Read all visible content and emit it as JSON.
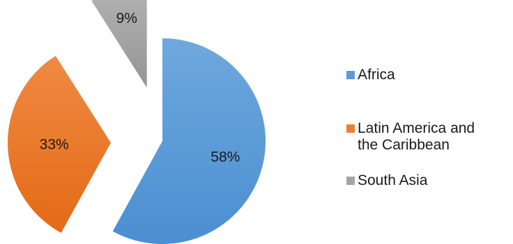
{
  "chart_data": {
    "type": "pie",
    "exploded": true,
    "start_angle_deg": 0,
    "direction": "clockwise",
    "slices": [
      {
        "category": "Africa",
        "value": 58,
        "label": "58%",
        "color": "#5b9bd5"
      },
      {
        "category": "Latin America and the Caribbean",
        "value": 33,
        "label": "33%",
        "color": "#ed7d31"
      },
      {
        "category": "South Asia",
        "value": 9,
        "label": "9%",
        "color": "#a5a5a5"
      }
    ],
    "legend": {
      "placement": "right",
      "entries": [
        {
          "line1": "Africa",
          "line2": "",
          "color": "#5b9bd5"
        },
        {
          "line1": "Latin America and",
          "line2": "the Caribbean",
          "color": "#ed7d31"
        },
        {
          "line1": "South Asia",
          "line2": "",
          "color": "#a5a5a5"
        }
      ]
    }
  }
}
